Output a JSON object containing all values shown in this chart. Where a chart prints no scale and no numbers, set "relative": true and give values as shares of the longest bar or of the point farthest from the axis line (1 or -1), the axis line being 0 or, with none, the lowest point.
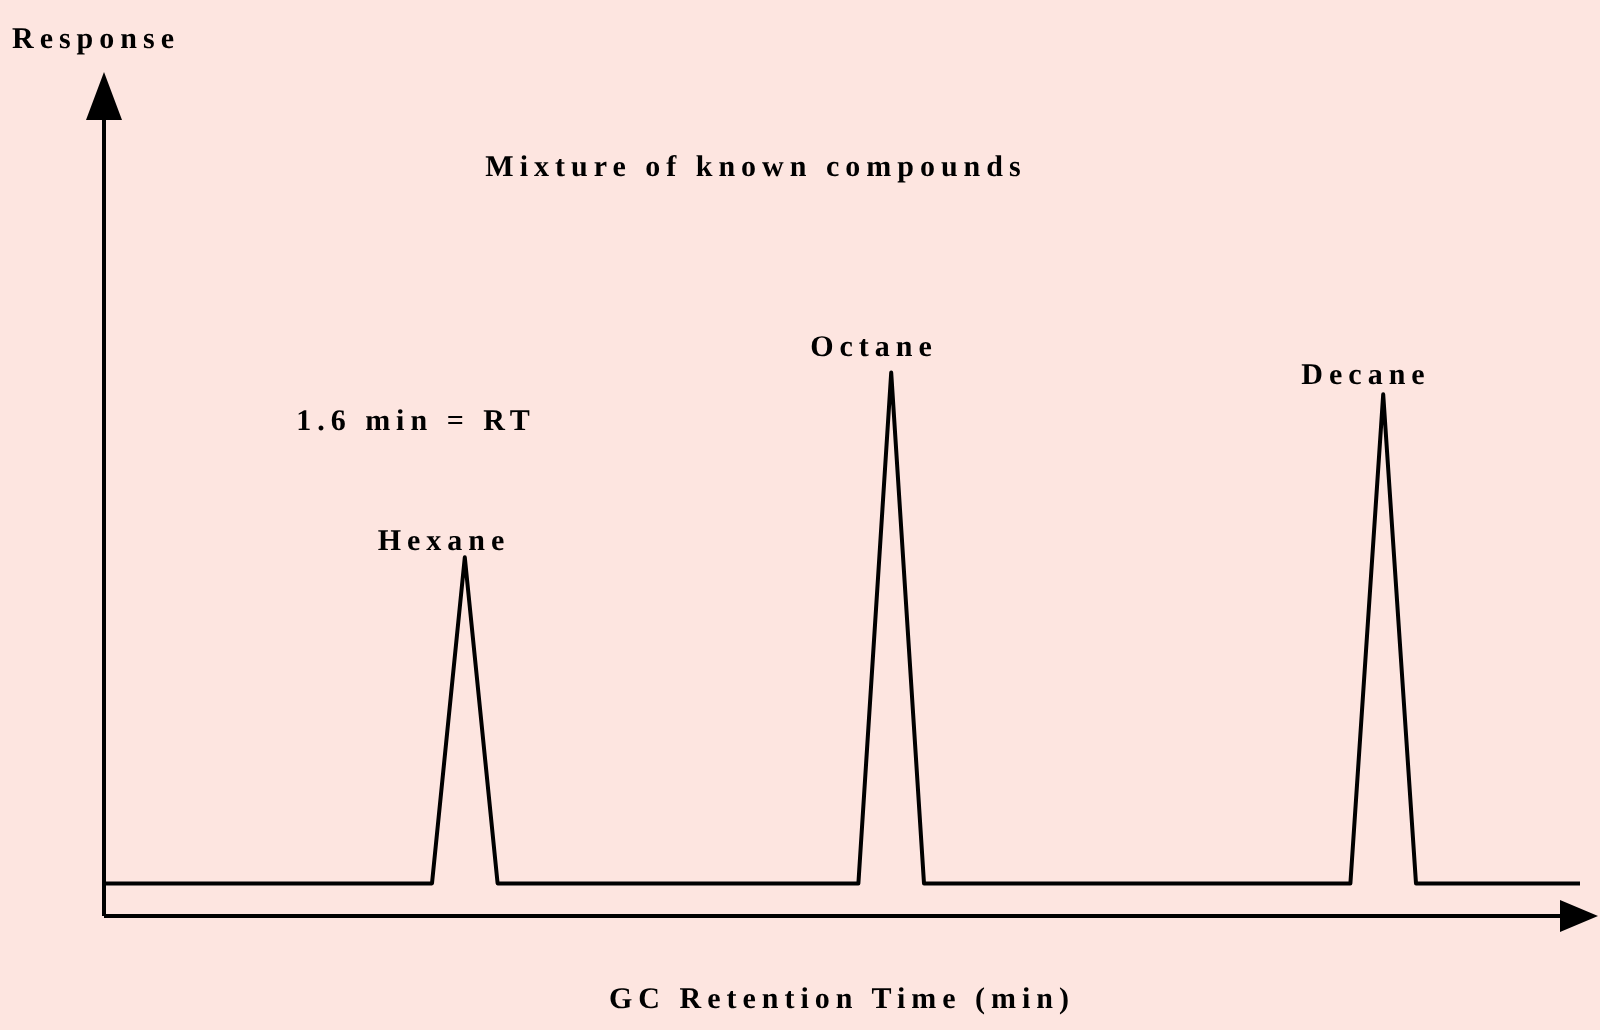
{
  "chart_data": {
    "type": "line",
    "relative": true,
    "xlabel": "GC Retention Time (min)",
    "categories": [
      null,
      null,
      null,
      null,
      null,
      null,
      null,
      null,
      null,
      null,
      null,
      null,
      null,
      null,
      null,
      null,
      null,
      null,
      null,
      null,
      null,
      null,
      null,
      null,
      null,
      null,
      null,
      null,
      null,
      null,
      null,
      null,
      null,
      null,
      null,
      null,
      null,
      null,
      null,
      null,
      null,
      null,
      null,
      null,
      null,
      null
    ],
    "series": [
      {
        "color": "#000000",
        "values": [
          0.06,
          0.06,
          0.06,
          0.06,
          0.06,
          0.06,
          0.06,
          0.06,
          0.06,
          0.06,
          0.06,
          0.66,
          0.06,
          0.06,
          0.06,
          0.06,
          0.06,
          0.06,
          0.06,
          0.06,
          0.06,
          0.06,
          0.06,
          0.06,
          1,
          0.06,
          0.06,
          0.06,
          0.06,
          0.06,
          0.06,
          0.06,
          0.06,
          0.06,
          0.06,
          0.06,
          0.06,
          0.06,
          0.06,
          0.96,
          0.06,
          0.06,
          0.06,
          0.06,
          0.06,
          0.06
        ]
      }
    ],
    "annotations": [
      "Response",
      "Mixture of known compounds",
      "1.6 min = RT",
      "Hexane",
      "Octane",
      "Decane"
    ]
  }
}
